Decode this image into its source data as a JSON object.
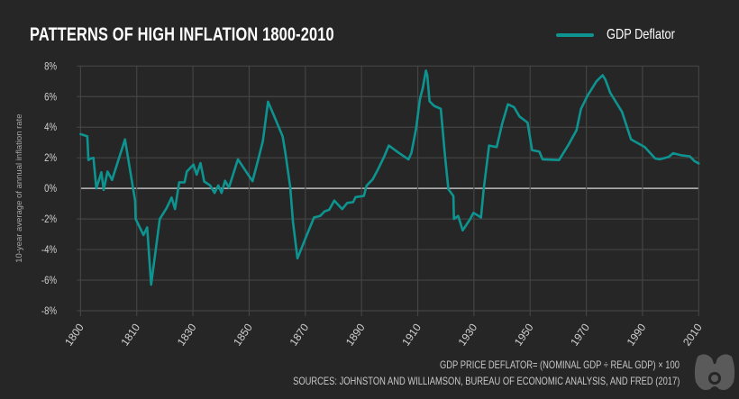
{
  "chart_data": {
    "type": "line",
    "title": "PATTERNS OF HIGH INFLATION 1800-2010",
    "ylabel": "10-year average of annual inflation rate",
    "xlabel": "",
    "x_ticks": [
      "1800",
      "1810",
      "1830",
      "1850",
      "1870",
      "1890",
      "1910",
      "1930",
      "1950",
      "1970",
      "1990",
      "2010"
    ],
    "y_ticks": [
      "8%",
      "6%",
      "4%",
      "2%",
      "0%",
      "-2%",
      "-4%",
      "-6%",
      "-8%"
    ],
    "ylim": [
      -8,
      8
    ],
    "xlim": [
      1800,
      2010
    ],
    "grid": true,
    "legend_position": "top-right",
    "series": [
      {
        "name": "GDP Deflator",
        "color": "#0e9490",
        "points": [
          [
            1800,
            3.55
          ],
          [
            1801.2,
            3.4
          ],
          [
            1801.4,
            1.85
          ],
          [
            1801.8,
            1.95
          ],
          [
            1802.3,
            2.0
          ],
          [
            1802.8,
            0
          ],
          [
            1803.7,
            1.05
          ],
          [
            1804.1,
            -0.1
          ],
          [
            1804.8,
            1.1
          ],
          [
            1805.6,
            0.55
          ],
          [
            1807.9,
            3.2
          ],
          [
            1809.7,
            -0.8
          ],
          [
            1809.8,
            -2.0
          ],
          [
            1812.4,
            -3.05
          ],
          [
            1813.7,
            -2.55
          ],
          [
            1815.1,
            -6.3
          ],
          [
            1818.2,
            -2.0
          ],
          [
            1820.6,
            -1.3
          ],
          [
            1822.4,
            -0.6
          ],
          [
            1823.6,
            -1.35
          ],
          [
            1825.1,
            0.4
          ],
          [
            1827,
            0.4
          ],
          [
            1827.8,
            1.1
          ],
          [
            1830.2,
            1.55
          ],
          [
            1831.3,
            0.9
          ],
          [
            1832.7,
            1.65
          ],
          [
            1834,
            0.45
          ],
          [
            1836.1,
            0.2
          ],
          [
            1837.7,
            -0.3
          ],
          [
            1839,
            0.2
          ],
          [
            1840.2,
            -0.3
          ],
          [
            1841.4,
            0.5
          ],
          [
            1842.8,
            0.05
          ],
          [
            1846,
            1.9
          ],
          [
            1851.2,
            0.47
          ],
          [
            1853.3,
            1.95
          ],
          [
            1854.9,
            3.1
          ],
          [
            1856.7,
            5.67
          ],
          [
            1859.2,
            4.6
          ],
          [
            1861.9,
            3.4
          ],
          [
            1862.9,
            2.3
          ],
          [
            1864.6,
            0.1
          ],
          [
            1865.6,
            -2.2
          ],
          [
            1867.2,
            -4.57
          ],
          [
            1870.4,
            -3.1
          ],
          [
            1873.1,
            -1.9
          ],
          [
            1875.3,
            -1.8
          ],
          [
            1876.9,
            -1.5
          ],
          [
            1878.5,
            -1.4
          ],
          [
            1880.3,
            -0.8
          ],
          [
            1883.1,
            -1.35
          ],
          [
            1884.9,
            -0.95
          ],
          [
            1887,
            -0.9
          ],
          [
            1887.9,
            -0.57
          ],
          [
            1890.8,
            -0.5
          ],
          [
            1891.8,
            0.18
          ],
          [
            1894,
            0.6
          ],
          [
            1896,
            1.3
          ],
          [
            1898,
            2.05
          ],
          [
            1899.7,
            2.8
          ],
          [
            1903.4,
            2.3
          ],
          [
            1906.7,
            1.9
          ],
          [
            1907.7,
            2.3
          ],
          [
            1909.4,
            3.9
          ],
          [
            1910.8,
            5.85
          ],
          [
            1911.8,
            6.55
          ],
          [
            1912.9,
            7.7
          ],
          [
            1913.4,
            7.4
          ],
          [
            1914.2,
            5.7
          ],
          [
            1915.8,
            5.4
          ],
          [
            1918.2,
            5.2
          ],
          [
            1919.6,
            2.3
          ],
          [
            1920.9,
            -0.05
          ],
          [
            1922.7,
            -0.5
          ],
          [
            1922.9,
            -2.0
          ],
          [
            1924.4,
            -1.8
          ],
          [
            1926,
            -2.75
          ],
          [
            1928.7,
            -2.0
          ],
          [
            1929.8,
            -1.6
          ],
          [
            1932.5,
            -1.9
          ],
          [
            1933.5,
            0
          ],
          [
            1935.4,
            2.8
          ],
          [
            1938.1,
            2.7
          ],
          [
            1940,
            4.2
          ],
          [
            1942.1,
            5.5
          ],
          [
            1944.3,
            5.3
          ],
          [
            1946.2,
            4.7
          ],
          [
            1949.1,
            4.3
          ],
          [
            1950.7,
            2.5
          ],
          [
            1953.3,
            2.4
          ],
          [
            1954.4,
            1.9
          ],
          [
            1960.3,
            1.85
          ],
          [
            1963.5,
            2.8
          ],
          [
            1966.5,
            3.8
          ],
          [
            1968.1,
            5.2
          ],
          [
            1970.4,
            6.05
          ],
          [
            1973.6,
            7.0
          ],
          [
            1975.8,
            7.4
          ],
          [
            1976.8,
            7.1
          ],
          [
            1978.5,
            6.25
          ],
          [
            1982.7,
            5.0
          ],
          [
            1985.9,
            3.2
          ],
          [
            1990.8,
            2.7
          ],
          [
            1994.5,
            1.95
          ],
          [
            1996.1,
            1.9
          ],
          [
            1999.3,
            2.05
          ],
          [
            2000.9,
            2.3
          ],
          [
            2004.1,
            2.15
          ],
          [
            2006.8,
            2.1
          ],
          [
            2008.4,
            1.8
          ],
          [
            2010,
            1.63
          ]
        ]
      }
    ],
    "footnotes": [
      "GDP PRICE DEFLATOR= (NOMINAL GDP ÷ REAL GDP) × 100",
      "SOURCES: JOHNSTON AND WILLIAMSON, BUREAU OF ECONOMIC ANALYSIS, AND FRED (2017)"
    ]
  },
  "colors": {
    "background": "#262626",
    "grid": "#444444",
    "zero_line": "#bdbdbd",
    "series": "#0e9490"
  },
  "icons": {
    "logo": "binoculars-logo-icon"
  }
}
